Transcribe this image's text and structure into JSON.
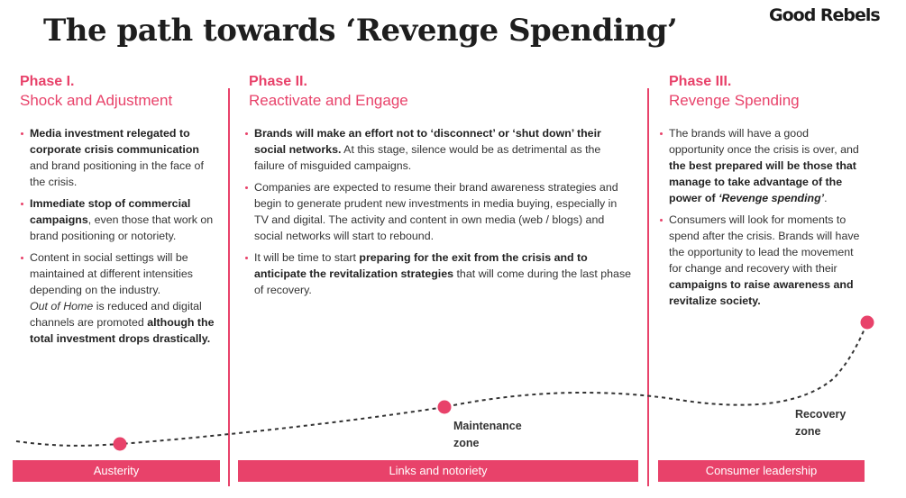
{
  "header": {
    "title": "The path towards ‘Revenge Spending’",
    "logo_text": "Good Rebels"
  },
  "colors": {
    "accent": "#e8426a",
    "text": "#333333"
  },
  "phases": [
    {
      "number": "Phase I.",
      "name": "Shock and Adjustment",
      "band_label": "Austerity",
      "bullets": [
        {
          "bold": "Media investment relegated to corporate crisis communication",
          "text": " and brand positioning in the face of the crisis."
        },
        {
          "bold": "Immediate stop of commercial campaigns",
          "text": ", even those that work on brand positioning or notoriety."
        },
        {
          "text": "Content in social settings will be maintained at different intensities depending on the industry.",
          "note_italic": "Out of Home",
          "note_text": " is reduced and digital channels are promoted ",
          "note_bold": "although the total investment drops drastically."
        }
      ]
    },
    {
      "number": "Phase II.",
      "name": "Reactivate and Engage",
      "band_label": "Links and notoriety",
      "bullets": [
        {
          "bold": "Brands will make an effort not to ‘disconnect’ or ‘shut down’ their social networks.",
          "text": " At this stage, silence would be as detrimental as the failure of misguided campaigns."
        },
        {
          "text": "Companies are expected to resume their brand awareness strategies and begin to generate prudent new investments in media buying, especially in TV and digital. The activity and content in own media (web / blogs) and social networks will start to rebound."
        },
        {
          "text": "It will be time to start ",
          "bold": "preparing for the exit from the crisis and to anticipate the revitalization strategies",
          "text2": " that will come during the last phase of recovery."
        }
      ]
    },
    {
      "number": "Phase III.",
      "name": "Revenge Spending",
      "band_label": "Consumer leadership",
      "bullets": [
        {
          "text": "The brands will have a good opportunity once the crisis is over, and ",
          "bold": "the best prepared will be those that manage to take advantage of the power of ",
          "bold_italic": "‘Revenge spending’",
          "text2": "."
        },
        {
          "text": "Consumers will look for moments to spend after the crisis. Brands will have the opportunity to lead the movement for change and recovery with their ",
          "bold": "campaigns to raise awareness and revitalize society."
        }
      ]
    }
  ],
  "zones": {
    "maintenance": "Maintenance zone",
    "recovery": "Recovery zone"
  }
}
